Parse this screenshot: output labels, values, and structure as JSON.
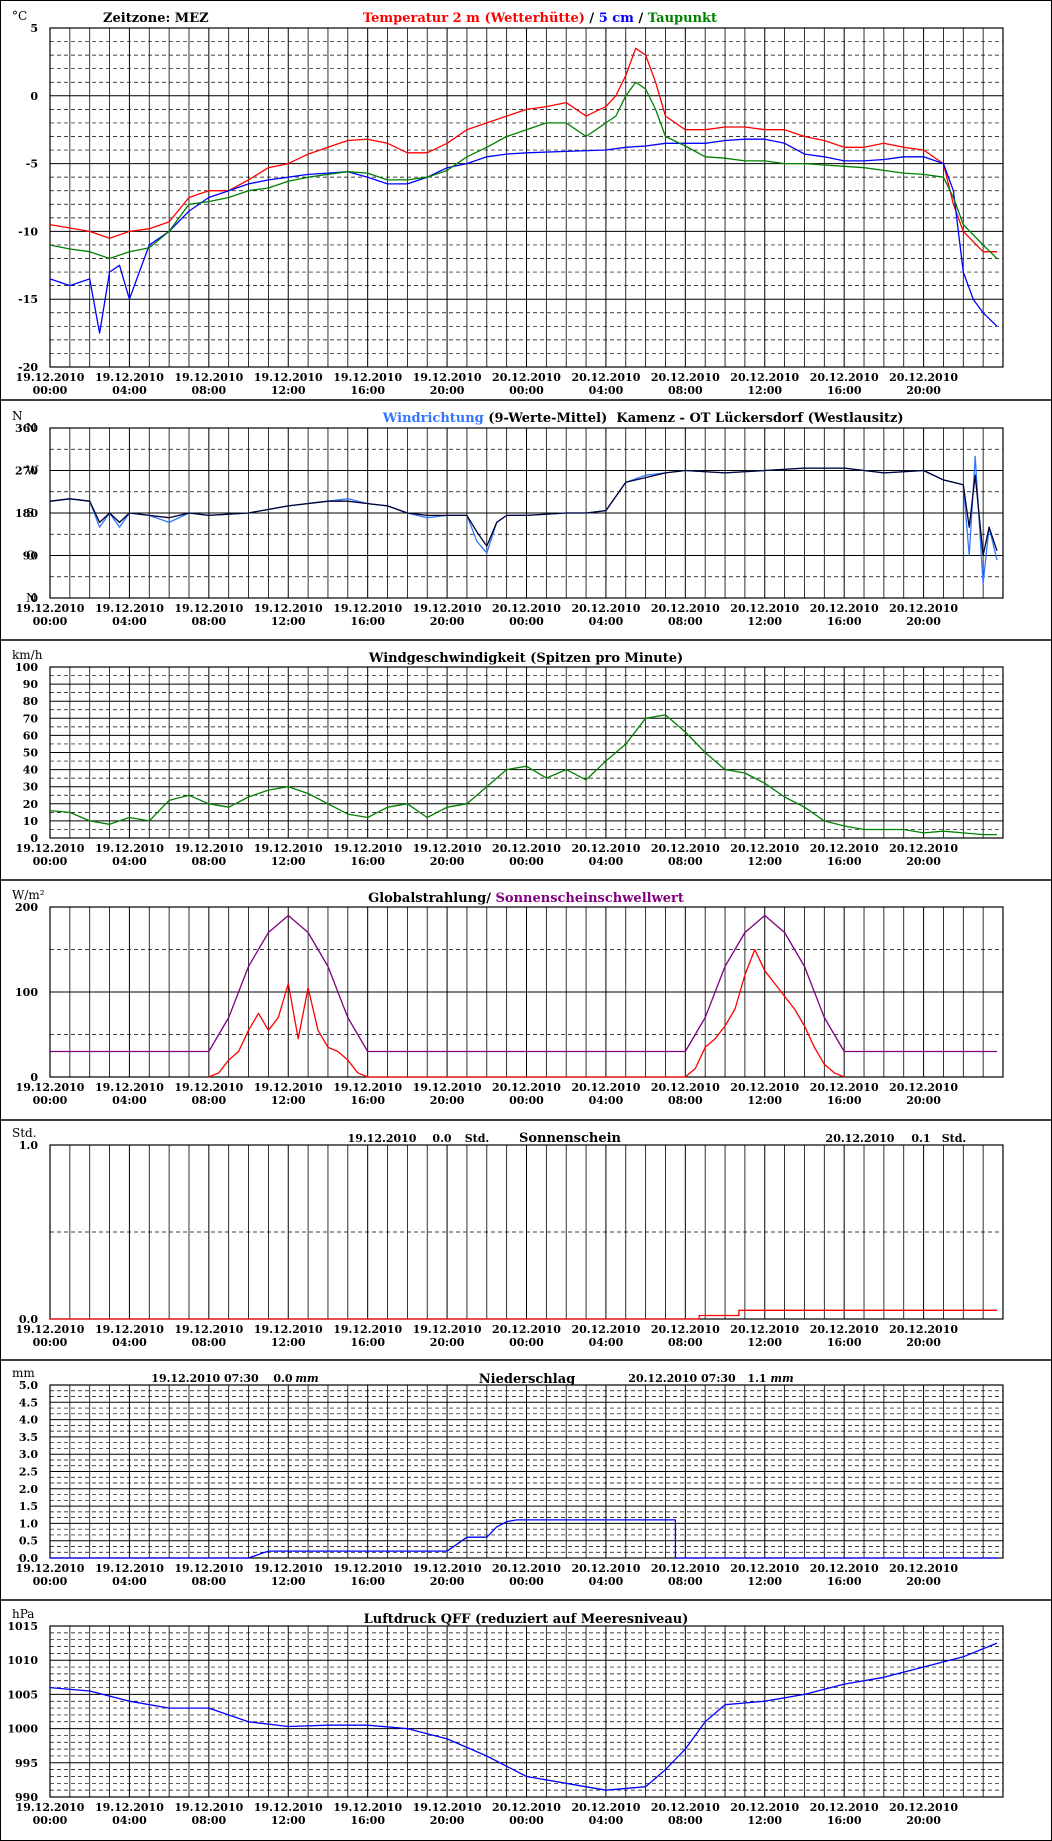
{
  "colors": {
    "temp2m": "#ff0000",
    "temp5cm": "#0000ff",
    "taupunkt": "#008000",
    "wind_dir_raw": "#3377ff",
    "wind_dir_avg": "#000033",
    "wind_speed": "#008000",
    "radiation": "#ff0000",
    "threshold": "#800080",
    "sunshine": "#ff0000",
    "precip": "#0000ff",
    "pressure": "#0000ff"
  },
  "x_ticks": [
    {
      "date": "19.12.2010",
      "time": "00:00"
    },
    {
      "date": "19.12.2010",
      "time": "04:00"
    },
    {
      "date": "19.12.2010",
      "time": "08:00"
    },
    {
      "date": "19.12.2010",
      "time": "12:00"
    },
    {
      "date": "19.12.2010",
      "time": "16:00"
    },
    {
      "date": "19.12.2010",
      "time": "20:00"
    },
    {
      "date": "20.12.2010",
      "time": "00:00"
    },
    {
      "date": "20.12.2010",
      "time": "04:00"
    },
    {
      "date": "20.12.2010",
      "time": "08:00"
    },
    {
      "date": "20.12.2010",
      "time": "12:00"
    },
    {
      "date": "20.12.2010",
      "time": "16:00"
    },
    {
      "date": "20.12.2010",
      "time": "20:00"
    }
  ],
  "panels": {
    "temperature": {
      "unit": "°C",
      "timezone": "Zeitzone: MEZ",
      "title_parts": [
        {
          "text": "Temperatur 2 m (Wetterhütte)",
          "color": "#ff0000"
        },
        {
          "text": " / ",
          "color": "#000000"
        },
        {
          "text": "5 cm",
          "color": "#0000ff"
        },
        {
          "text": " / ",
          "color": "#000000"
        },
        {
          "text": "Taupunkt",
          "color": "#008000"
        }
      ],
      "y_ticks": [
        "5",
        "0",
        "-5",
        "-10",
        "-15",
        "-20"
      ]
    },
    "wind_direction": {
      "unit": "N",
      "title_parts": [
        {
          "text": "Windrichtung",
          "color": "#3377ff"
        },
        {
          "text": " (9-Werte-Mittel)",
          "color": "#000000"
        }
      ],
      "location": "Kamenz - OT Lückersdorf (Westlausitz)",
      "y_ticks": [
        "360",
        "270",
        "180",
        "90",
        "0"
      ],
      "compass": [
        "N",
        "W",
        "S",
        "O",
        "N"
      ]
    },
    "wind_speed": {
      "unit": "km/h",
      "title": "Windgeschwindigkeit (Spitzen pro Minute)",
      "y_ticks": [
        "100",
        "90",
        "80",
        "70",
        "60",
        "50",
        "40",
        "30",
        "20",
        "10",
        "0"
      ]
    },
    "radiation": {
      "unit": "W/m²",
      "title_parts": [
        {
          "text": "Globalstrahlung/ ",
          "color": "#000000"
        },
        {
          "text": "Sonnenscheinschwellwert",
          "color": "#800080"
        }
      ],
      "y_ticks": [
        "200",
        "100",
        "0"
      ]
    },
    "sunshine": {
      "unit": "Std.",
      "title": "Sonnenschein",
      "day1": {
        "date": "19.12.2010",
        "value": "0.0",
        "unit": "Std."
      },
      "day2": {
        "date": "20.12.2010",
        "value": "0.1",
        "unit": "Std."
      },
      "y_ticks": [
        "1.0",
        "0.0"
      ]
    },
    "precipitation": {
      "unit": "mm",
      "title": "Niederschlag",
      "day1": {
        "datetime": "19.12.2010 07:30",
        "value": "0.0",
        "unit": "mm"
      },
      "day2": {
        "datetime": "20.12.2010 07:30",
        "value": "1.1",
        "unit": "mm"
      },
      "y_ticks": [
        "5.0",
        "4.5",
        "4.0",
        "3.5",
        "3.0",
        "2.5",
        "2.0",
        "1.5",
        "1.0",
        "0.5",
        "0.0"
      ]
    },
    "pressure": {
      "unit": "hPa",
      "title": "Luftdruck QFF (reduziert auf Meeresniveau)",
      "y_ticks": [
        "1015",
        "1010",
        "1005",
        "1000",
        "995",
        "990"
      ]
    }
  },
  "chart_data": [
    {
      "type": "line",
      "x_unit": "hours since 19.12.2010 00:00",
      "ylim": [
        -20,
        5
      ],
      "grid": true,
      "series": [
        {
          "name": "Temperatur 2 m (Wetterhütte)",
          "x": [
            0,
            2,
            3,
            4,
            5,
            6,
            7,
            8,
            9,
            10,
            11,
            12,
            13,
            14,
            15,
            16,
            17,
            18,
            19,
            20,
            21,
            22,
            23,
            24,
            25,
            26,
            27,
            28,
            28.5,
            29,
            29.5,
            30,
            30.5,
            31,
            32,
            33,
            34,
            35,
            36,
            37,
            38,
            39,
            40,
            41,
            42,
            43,
            44,
            45,
            45.5,
            46,
            47,
            47.7
          ],
          "y": [
            -9.5,
            -10,
            -10.5,
            -10,
            -9.8,
            -9.3,
            -7.5,
            -7,
            -7,
            -6.2,
            -5.3,
            -5,
            -4.3,
            -3.8,
            -3.3,
            -3.2,
            -3.5,
            -4.2,
            -4.2,
            -3.5,
            -2.5,
            -2,
            -1.5,
            -1,
            -0.8,
            -0.5,
            -1.5,
            -0.8,
            0,
            1.5,
            3.5,
            3,
            1,
            -1.5,
            -2.5,
            -2.5,
            -2.3,
            -2.3,
            -2.5,
            -2.5,
            -3,
            -3.3,
            -3.8,
            -3.8,
            -3.5,
            -3.8,
            -4,
            -5,
            -8,
            -10,
            -11.5,
            -11.5
          ]
        },
        {
          "name": "5 cm",
          "x": [
            0,
            1,
            2,
            2.5,
            3,
            3.5,
            4,
            4.5,
            5,
            6,
            7,
            8,
            9,
            10,
            11,
            12,
            13,
            14,
            15,
            16,
            17,
            18,
            19,
            20,
            21,
            22,
            23,
            24,
            26,
            28,
            29,
            30,
            31,
            32,
            33,
            34,
            35,
            36,
            37,
            38,
            39,
            40,
            41,
            42,
            43,
            44,
            45,
            45.5,
            46,
            46.5,
            47,
            47.7
          ],
          "y": [
            -13.5,
            -14,
            -13.5,
            -17.5,
            -13,
            -12.5,
            -15,
            -13,
            -11,
            -10,
            -8.5,
            -7.5,
            -7,
            -6.5,
            -6.2,
            -6,
            -5.8,
            -5.7,
            -5.6,
            -6,
            -6.5,
            -6.5,
            -6,
            -5.3,
            -5,
            -4.5,
            -4.3,
            -4.2,
            -4.1,
            -4,
            -3.8,
            -3.7,
            -3.5,
            -3.5,
            -3.5,
            -3.3,
            -3.2,
            -3.2,
            -3.5,
            -4.3,
            -4.5,
            -4.8,
            -4.8,
            -4.7,
            -4.5,
            -4.5,
            -5,
            -7,
            -13,
            -15,
            -16,
            -17
          ]
        },
        {
          "name": "Taupunkt",
          "x": [
            0,
            1,
            2,
            3,
            4,
            5,
            6,
            7,
            8,
            9,
            10,
            11,
            12,
            13,
            14,
            15,
            16,
            17,
            18,
            19,
            20,
            21,
            22,
            23,
            24,
            25,
            26,
            27,
            28,
            28.5,
            29,
            29.5,
            30,
            30.5,
            31,
            32,
            33,
            34,
            35,
            36,
            37,
            38,
            39,
            40,
            41,
            42,
            43,
            44,
            45,
            45.5,
            46,
            47,
            47.7
          ],
          "y": [
            -11,
            -11.3,
            -11.5,
            -12,
            -11.5,
            -11.2,
            -10,
            -8,
            -7.8,
            -7.5,
            -7,
            -6.8,
            -6.3,
            -6,
            -5.8,
            -5.6,
            -5.7,
            -6.2,
            -6.2,
            -6,
            -5.5,
            -4.5,
            -3.8,
            -3,
            -2.5,
            -2,
            -2,
            -3,
            -2,
            -1.5,
            0,
            1,
            0.5,
            -1,
            -3,
            -3.7,
            -4.5,
            -4.6,
            -4.8,
            -4.8,
            -5,
            -5,
            -5.1,
            -5.2,
            -5.3,
            -5.5,
            -5.7,
            -5.8,
            -6,
            -7.5,
            -9.5,
            -11,
            -12
          ]
        }
      ]
    },
    {
      "type": "line",
      "x_unit": "hours since 19.12.2010 00:00",
      "ylim": [
        0,
        360
      ],
      "series": [
        {
          "name": "Windrichtung",
          "x": [
            0,
            1,
            2,
            2.5,
            3,
            3.5,
            4,
            5,
            6,
            7,
            8,
            10,
            12,
            14,
            15,
            16,
            17,
            18,
            19,
            20,
            21,
            21.5,
            22,
            22.5,
            23,
            24,
            26,
            27,
            28,
            29,
            30,
            31,
            32,
            34,
            36,
            38,
            40,
            42,
            44,
            45,
            46,
            46.3,
            46.6,
            47,
            47.3,
            47.7
          ],
          "y": [
            205,
            210,
            205,
            150,
            180,
            150,
            180,
            175,
            160,
            180,
            175,
            180,
            195,
            205,
            210,
            200,
            195,
            180,
            170,
            175,
            175,
            120,
            95,
            160,
            175,
            175,
            180,
            180,
            185,
            245,
            260,
            265,
            270,
            265,
            270,
            275,
            275,
            265,
            270,
            250,
            240,
            90,
            300,
            30,
            150,
            80
          ]
        },
        {
          "name": "9-Werte-Mittel",
          "x": [
            0,
            1,
            2,
            2.5,
            3,
            3.5,
            4,
            5,
            6,
            7,
            8,
            10,
            12,
            14,
            15,
            16,
            17,
            18,
            19,
            20,
            21,
            21.5,
            22,
            22.5,
            23,
            24,
            26,
            27,
            28,
            29,
            30,
            31,
            32,
            34,
            36,
            38,
            40,
            42,
            44,
            45,
            46,
            46.3,
            46.6,
            47,
            47.3,
            47.7
          ],
          "y": [
            205,
            210,
            205,
            160,
            180,
            160,
            180,
            175,
            170,
            180,
            175,
            180,
            195,
            205,
            205,
            200,
            195,
            180,
            175,
            175,
            175,
            140,
            110,
            160,
            175,
            175,
            180,
            180,
            185,
            245,
            255,
            265,
            270,
            265,
            270,
            275,
            275,
            265,
            270,
            250,
            240,
            150,
            260,
            90,
            150,
            100
          ]
        }
      ]
    },
    {
      "type": "line",
      "x_unit": "hours since 19.12.2010 00:00",
      "ylim": [
        0,
        100
      ],
      "series": [
        {
          "name": "Windgeschwindigkeit",
          "x": [
            0,
            1,
            2,
            3,
            4,
            5,
            6,
            7,
            8,
            9,
            10,
            11,
            12,
            13,
            14,
            15,
            16,
            17,
            18,
            19,
            20,
            21,
            22,
            23,
            24,
            25,
            26,
            27,
            28,
            29,
            30,
            31,
            32,
            33,
            34,
            35,
            36,
            37,
            38,
            39,
            40,
            41,
            42,
            43,
            44,
            45,
            46,
            47,
            47.7
          ],
          "y": [
            16,
            15,
            10,
            8,
            12,
            10,
            22,
            25,
            20,
            18,
            24,
            28,
            30,
            26,
            20,
            14,
            12,
            18,
            20,
            12,
            18,
            20,
            30,
            40,
            42,
            35,
            40,
            34,
            45,
            55,
            70,
            72,
            62,
            50,
            40,
            38,
            32,
            24,
            18,
            10,
            7,
            5,
            5,
            5,
            3,
            4,
            3,
            2,
            2
          ]
        }
      ]
    },
    {
      "type": "line",
      "x_unit": "hours since 19.12.2010 00:00",
      "ylim": [
        0,
        200
      ],
      "series": [
        {
          "name": "Globalstrahlung",
          "x": [
            8,
            8.5,
            9,
            9.5,
            10,
            10.5,
            11,
            11.5,
            12,
            12.5,
            13,
            13.5,
            14,
            14.5,
            15,
            15.5,
            16,
            32,
            32.5,
            33,
            33.5,
            34,
            34.5,
            35,
            35.5,
            36,
            36.5,
            37,
            37.5,
            38,
            38.5,
            39,
            39.5,
            40
          ],
          "y": [
            0,
            5,
            20,
            30,
            55,
            75,
            55,
            70,
            110,
            45,
            105,
            55,
            35,
            30,
            20,
            5,
            0,
            0,
            10,
            35,
            45,
            60,
            80,
            120,
            150,
            125,
            110,
            95,
            80,
            60,
            35,
            15,
            5,
            0
          ]
        },
        {
          "name": "Sonnenscheinschwellwert",
          "x": [
            0,
            8,
            9,
            10,
            11,
            12,
            13,
            14,
            15,
            16,
            32,
            33,
            34,
            35,
            36,
            37,
            38,
            39,
            40,
            47.7
          ],
          "y": [
            30,
            30,
            70,
            130,
            170,
            190,
            170,
            130,
            70,
            30,
            30,
            70,
            130,
            170,
            190,
            170,
            130,
            70,
            30,
            30
          ]
        }
      ]
    },
    {
      "type": "line",
      "x_unit": "hours since 19.12.2010 00:00",
      "ylim": [
        0,
        1
      ],
      "series": [
        {
          "name": "Sonnenschein",
          "x": [
            0,
            32.7,
            32.7,
            34.7,
            34.7,
            47.7
          ],
          "y": [
            0,
            0,
            0.02,
            0.02,
            0.05,
            0.05
          ]
        }
      ]
    },
    {
      "type": "line",
      "x_unit": "hours since 19.12.2010 00:00",
      "ylim": [
        0,
        5
      ],
      "series": [
        {
          "name": "Niederschlag",
          "x": [
            0,
            10,
            10.5,
            11,
            20,
            20.5,
            21,
            22,
            22.5,
            23,
            23.5,
            31.5,
            31.5,
            47.7
          ],
          "y": [
            0,
            0,
            0.1,
            0.2,
            0.2,
            0.4,
            0.6,
            0.6,
            0.9,
            1.05,
            1.1,
            1.1,
            0,
            0
          ]
        }
      ]
    },
    {
      "type": "line",
      "x_unit": "hours since 19.12.2010 00:00",
      "ylim": [
        990,
        1015
      ],
      "series": [
        {
          "name": "Luftdruck QFF",
          "x": [
            0,
            2,
            4,
            6,
            8,
            10,
            12,
            14,
            16,
            18,
            20,
            22,
            24,
            26,
            28,
            30,
            31,
            32,
            33,
            34,
            36,
            38,
            40,
            42,
            44,
            46,
            47.7
          ],
          "y": [
            1006,
            1005.5,
            1004,
            1003,
            1003,
            1001,
            1000.3,
            1000.5,
            1000.5,
            1000,
            998.5,
            996,
            993,
            992,
            991,
            991.5,
            994,
            997,
            1001,
            1003.5,
            1004,
            1005,
            1006.5,
            1007.5,
            1009,
            1010.5,
            1012.5
          ]
        }
      ]
    }
  ]
}
